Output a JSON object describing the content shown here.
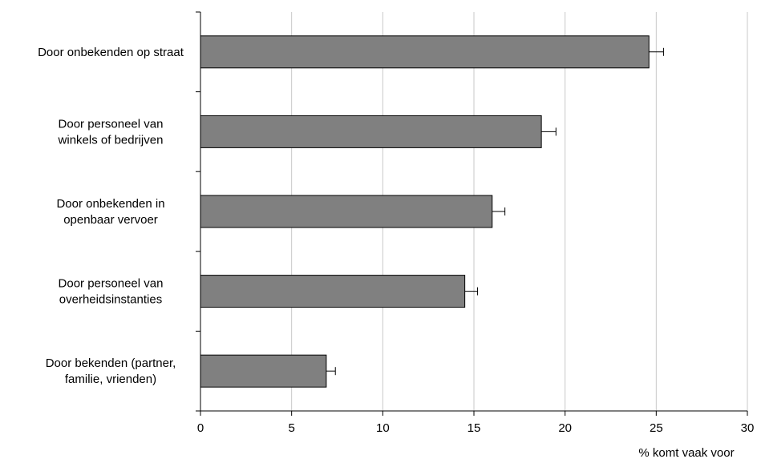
{
  "chart_data": {
    "type": "bar",
    "orientation": "horizontal",
    "categories": [
      [
        "Door onbekenden op straat"
      ],
      [
        "Door personeel van",
        "winkels of bedrijven"
      ],
      [
        "Door onbekenden in",
        "openbaar vervoer"
      ],
      [
        "Door personeel van",
        "overheidsinstanties"
      ],
      [
        "Door bekenden (partner,",
        "familie, vrienden)"
      ]
    ],
    "values": [
      24.6,
      18.7,
      16.0,
      14.5,
      6.9
    ],
    "errors": [
      0.8,
      0.8,
      0.7,
      0.7,
      0.5
    ],
    "xlim": [
      0,
      30
    ],
    "xticks": [
      "0",
      "5",
      "10",
      "15",
      "20",
      "25",
      "30"
    ],
    "xlabel": "% komt vaak voor",
    "ylabel": "",
    "title": "",
    "grid": "vertical",
    "bar_color": "#808080"
  }
}
